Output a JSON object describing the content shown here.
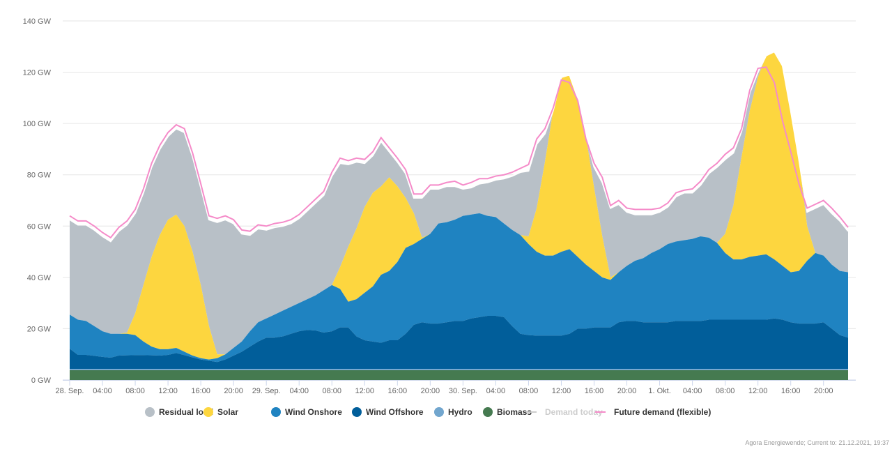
{
  "chart_data": {
    "type": "area",
    "stacked": true,
    "title": "",
    "xlabel": "",
    "ylabel": "",
    "y_unit": "GW",
    "ylim": [
      0,
      140
    ],
    "y_ticks": [
      "0 GW",
      "20 GW",
      "40 GW",
      "60 GW",
      "80 GW",
      "100 GW",
      "120 GW",
      "140 GW"
    ],
    "x_start": "28. Sep. 00:00",
    "x_end": "1. Okt. 23:00",
    "x_step": "1 hour",
    "x_tick_labels": [
      "28. Sep.",
      "04:00",
      "08:00",
      "12:00",
      "16:00",
      "20:00",
      "29. Sep.",
      "04:00",
      "08:00",
      "12:00",
      "16:00",
      "20:00",
      "30. Sep.",
      "04:00",
      "08:00",
      "12:00",
      "16:00",
      "20:00",
      "1. Okt.",
      "04:00",
      "08:00",
      "12:00",
      "16:00",
      "20:00"
    ],
    "grid": "horizontal",
    "legend_position": "bottom",
    "series": [
      {
        "name": "Residual load",
        "color": "#b8c0c7",
        "visible": true,
        "values": [
          37,
          37,
          37.5,
          37.5,
          37,
          36,
          40,
          42,
          39,
          36,
          35,
          33.5,
          32.5,
          33.5,
          36.5,
          37,
          38,
          41.5,
          51.5,
          52.5,
          48.5,
          42,
          37.5,
          36.5,
          34.5,
          34,
          33,
          32.5,
          33,
          34.5,
          36,
          37,
          42.5,
          40.5,
          32,
          26,
          17,
          14.5,
          17.5,
          10,
          9.5,
          9.5,
          6,
          15.5,
          17.5,
          13.5,
          14,
          13,
          10.5,
          10.5,
          11.5,
          13,
          14.5,
          17.5,
          21,
          24.5,
          25.5,
          25,
          11,
          0,
          0,
          0,
          0,
          0,
          8,
          21,
          27,
          26.5,
          21,
          18,
          17,
          15,
          14.5,
          14.5,
          17.5,
          18.5,
          18,
          20,
          25,
          29.5,
          29,
          20.5,
          10,
          7,
          2,
          0,
          0,
          0,
          0,
          0,
          5.5,
          17.5,
          20,
          20,
          19.5,
          16
        ]
      },
      {
        "name": "Solar",
        "color": "#fdd63f",
        "visible": true,
        "values": [
          0,
          0,
          0,
          0,
          0,
          0,
          0,
          0.5,
          8.5,
          22,
          35,
          44.5,
          50.5,
          52,
          49,
          40.5,
          28.5,
          13,
          1.5,
          0,
          0,
          0,
          0,
          0,
          0,
          0,
          0,
          0,
          0,
          0,
          0,
          0,
          0,
          8.5,
          21.5,
          27.5,
          33.5,
          36.5,
          34.5,
          36.5,
          29.5,
          19.5,
          12,
          0.5,
          0,
          0,
          0,
          0,
          0,
          0,
          0,
          0,
          0,
          0,
          0,
          0,
          3,
          17,
          36.5,
          56.5,
          68,
          68,
          62,
          50,
          32.5,
          16,
          1,
          0,
          0,
          0,
          0,
          0,
          0,
          0,
          0,
          0,
          0,
          0,
          0,
          0,
          7.5,
          21,
          40,
          57,
          69.5,
          77.5,
          81,
          78,
          63,
          43.5,
          13.5,
          0,
          0,
          0,
          0,
          0
        ]
      },
      {
        "name": "Wind Onshore",
        "color": "#1f83c1",
        "visible": true,
        "values": [
          13.3,
          13.7,
          13.2,
          11.6,
          10,
          9.3,
          8.5,
          8.4,
          7.8,
          5.3,
          3.4,
          2.5,
          2.2,
          2,
          1.3,
          0.7,
          0.5,
          0.5,
          1.5,
          2,
          3,
          4,
          6,
          7.5,
          7.5,
          9,
          10,
          10.5,
          11,
          12,
          13.7,
          16.5,
          18,
          15,
          10,
          14.5,
          18.5,
          21.5,
          26.5,
          27,
          30.5,
          33.5,
          31.5,
          32.5,
          35,
          39,
          39,
          39.5,
          41,
          40.5,
          40.5,
          39,
          38.5,
          36.5,
          37.5,
          38.5,
          35.5,
          32.7,
          31.2,
          31.2,
          32.7,
          33,
          28,
          25,
          22,
          19.5,
          18.5,
          19.5,
          21.5,
          23.5,
          25,
          27,
          28.5,
          30.5,
          31,
          31.5,
          32,
          33,
          32,
          30,
          26,
          23.5,
          23.5,
          24.5,
          25,
          25.5,
          23,
          21,
          19.5,
          20.5,
          24.5,
          27.5,
          26,
          25,
          25,
          25.5
        ]
      },
      {
        "name": "Wind Offshore",
        "color": "#015e9a",
        "visible": true,
        "values": [
          7.9,
          5.5,
          5.5,
          5.1,
          4.7,
          4.4,
          5.2,
          5.3,
          5.4,
          5.4,
          5.3,
          5.2,
          5.5,
          6.2,
          5.4,
          4.5,
          3.7,
          3.2,
          2.7,
          3.7,
          5.2,
          6.7,
          8.7,
          10.7,
          12.2,
          12.2,
          12.7,
          13.7,
          14.7,
          15.2,
          15,
          14.2,
          14.7,
          16.2,
          16.2,
          12.7,
          11.2,
          10.7,
          10.2,
          11.2,
          11.2,
          13.7,
          17.2,
          18.2,
          17.7,
          17.7,
          18.2,
          18.7,
          18.7,
          19.7,
          20.2,
          20.7,
          20.7,
          20.2,
          16.7,
          13.7,
          13.2,
          13,
          13,
          13,
          13,
          13.7,
          15.7,
          15.7,
          16.2,
          16.2,
          16.2,
          18.2,
          18.7,
          18.7,
          18.2,
          18.2,
          18.2,
          18.2,
          18.7,
          18.7,
          18.7,
          18.7,
          19.2,
          19.2,
          19.2,
          19.2,
          19.2,
          19.2,
          19.2,
          19.2,
          19.7,
          19.2,
          18.2,
          17.7,
          17.7,
          17.7,
          18.2,
          15.7,
          13.2,
          12.2
        ]
      },
      {
        "name": "Hydro",
        "color": "#72a6ce",
        "visible": true,
        "constant": 0.5
      },
      {
        "name": "Biomass",
        "color": "#457a50",
        "visible": true,
        "constant": 3.8
      }
    ],
    "lines": [
      {
        "name": "Demand today",
        "color": "#cccccc",
        "visible": false
      },
      {
        "name": "Future demand (flexible)",
        "color": "#f58bc9",
        "visible": true,
        "values": [
          64,
          62,
          62,
          60,
          57.5,
          55.5,
          59.5,
          62,
          66.5,
          74.5,
          84.5,
          91.5,
          96.5,
          99.5,
          98,
          88.5,
          76.5,
          64,
          63,
          64,
          62.5,
          58.5,
          58,
          60.5,
          60,
          61,
          61.5,
          62.5,
          64.5,
          67.5,
          70.5,
          73.5,
          81,
          86.5,
          85.5,
          86.5,
          86,
          89,
          94.5,
          90.5,
          86.5,
          82,
          72.5,
          72.5,
          76,
          76,
          77,
          77.5,
          76,
          77,
          78.5,
          78.5,
          79.5,
          80,
          81,
          82.5,
          84,
          94,
          98,
          106,
          117,
          116,
          109,
          94,
          84.5,
          79,
          68,
          70,
          67,
          66.5,
          66.5,
          66.5,
          67,
          69,
          73,
          74,
          74.5,
          77.5,
          82,
          84.5,
          88,
          90.5,
          98,
          113,
          121.5,
          122,
          116,
          101,
          89,
          76.5,
          67,
          68.5,
          70,
          67,
          63.5,
          59.5
        ]
      }
    ]
  },
  "credits": "Agora Energiewende; Current to: 21.12.2021, 19:37"
}
